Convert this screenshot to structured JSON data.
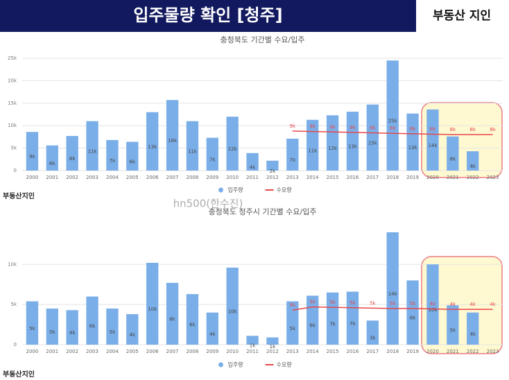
{
  "header": {
    "title": "입주물량 확인 [청주]",
    "brand": "부동산 지인",
    "watermark": "hn500(한수진)",
    "logo": "부동산지인"
  },
  "chart_data": [
    {
      "type": "bar",
      "title": "충청북도 기간별 수요/입주",
      "categories": [
        "2000",
        "2001",
        "2002",
        "2003",
        "2004",
        "2005",
        "2006",
        "2007",
        "2008",
        "2009",
        "2010",
        "2011",
        "2012",
        "2013",
        "2014",
        "2015",
        "2016",
        "2017",
        "2018",
        "2019",
        "2020",
        "2021",
        "2022",
        "2023"
      ],
      "ylim": [
        0,
        25000
      ],
      "yticks": [
        0,
        {
          "value": 5000,
          "label": "5k"
        },
        {
          "value": 10000,
          "label": "10k"
        },
        {
          "value": 15000,
          "label": "15k"
        },
        {
          "value": 20000,
          "label": "20k"
        },
        {
          "value": 25000,
          "label": "25k"
        }
      ],
      "grid": true,
      "legend": "bottom",
      "series": [
        {
          "name": "입주량",
          "type": "bar",
          "color": "#7aaee8",
          "values": [
            8600,
            5600,
            7700,
            11000,
            6800,
            6400,
            13000,
            15700,
            11000,
            7300,
            12000,
            3900,
            2200,
            7100,
            11300,
            12300,
            13100,
            14700,
            24500,
            12700,
            13600,
            7600,
            4300,
            null
          ],
          "value_labels": [
            "9k",
            "6k",
            "8k",
            "11k",
            "7k",
            "6k",
            "13k",
            "16k",
            "11k",
            "7k",
            "12k",
            "4k",
            "2k",
            "7k",
            "11k",
            "12k",
            "13k",
            "15k",
            "25k",
            "13k",
            "14k",
            "8k",
            "4k",
            null
          ]
        },
        {
          "name": "수요량",
          "type": "line",
          "color": "#e8464a",
          "values": [
            null,
            null,
            null,
            null,
            null,
            null,
            null,
            null,
            null,
            null,
            null,
            null,
            null,
            8800,
            8700,
            8600,
            8500,
            8400,
            8300,
            8200,
            8100,
            8000,
            8000,
            8000
          ],
          "value_labels": [
            null,
            null,
            null,
            null,
            null,
            null,
            null,
            null,
            null,
            null,
            null,
            null,
            null,
            "9k",
            "9k",
            "9k",
            "9k",
            "8k",
            "8k",
            "8k",
            "8k",
            "8k",
            "8k",
            "8k"
          ]
        }
      ]
    },
    {
      "type": "bar",
      "title": "충청북도 청주시 기간별 수요/입주",
      "categories": [
        "2000",
        "2001",
        "2002",
        "2003",
        "2004",
        "2005",
        "2006",
        "2007",
        "2008",
        "2009",
        "2010",
        "2011",
        "2012",
        "2013",
        "2014",
        "2015",
        "2016",
        "2017",
        "2018",
        "2019",
        "2020",
        "2021",
        "2022",
        "2023"
      ],
      "ylim": [
        0,
        14000
      ],
      "yticks": [
        0,
        {
          "value": 5000,
          "label": "5k"
        },
        {
          "value": 10000,
          "label": "10k"
        }
      ],
      "grid": true,
      "legend": "bottom",
      "series": [
        {
          "name": "입주량",
          "type": "bar",
          "color": "#7aaee8",
          "values": [
            5400,
            4500,
            4300,
            6000,
            4500,
            3800,
            10200,
            7700,
            6300,
            4000,
            9600,
            1100,
            900,
            5400,
            6100,
            6500,
            6600,
            3000,
            14000,
            8000,
            10000,
            4900,
            4000,
            null
          ],
          "value_labels": [
            "5k",
            "5k",
            "4k",
            "6k",
            "5k",
            "4k",
            "10k",
            "8k",
            "6k",
            "4k",
            "10k",
            "1k",
            "1k",
            "5k",
            "6k",
            "7k",
            "7k",
            "3k",
            "14k",
            "8k",
            "10k",
            "5k",
            "4k",
            null
          ]
        },
        {
          "name": "수요량",
          "type": "line",
          "color": "#e8464a",
          "values": [
            null,
            null,
            null,
            null,
            null,
            null,
            null,
            null,
            null,
            null,
            null,
            null,
            null,
            4300,
            4700,
            4650,
            4600,
            4550,
            4500,
            4500,
            4450,
            4400,
            4400,
            4400
          ],
          "value_labels": [
            null,
            null,
            null,
            null,
            null,
            null,
            null,
            null,
            null,
            null,
            null,
            null,
            null,
            "4k",
            "5k",
            "5k",
            "5k",
            "5k",
            "5k",
            "5k",
            "4k",
            "4k",
            "4k",
            "4k"
          ]
        }
      ]
    }
  ]
}
